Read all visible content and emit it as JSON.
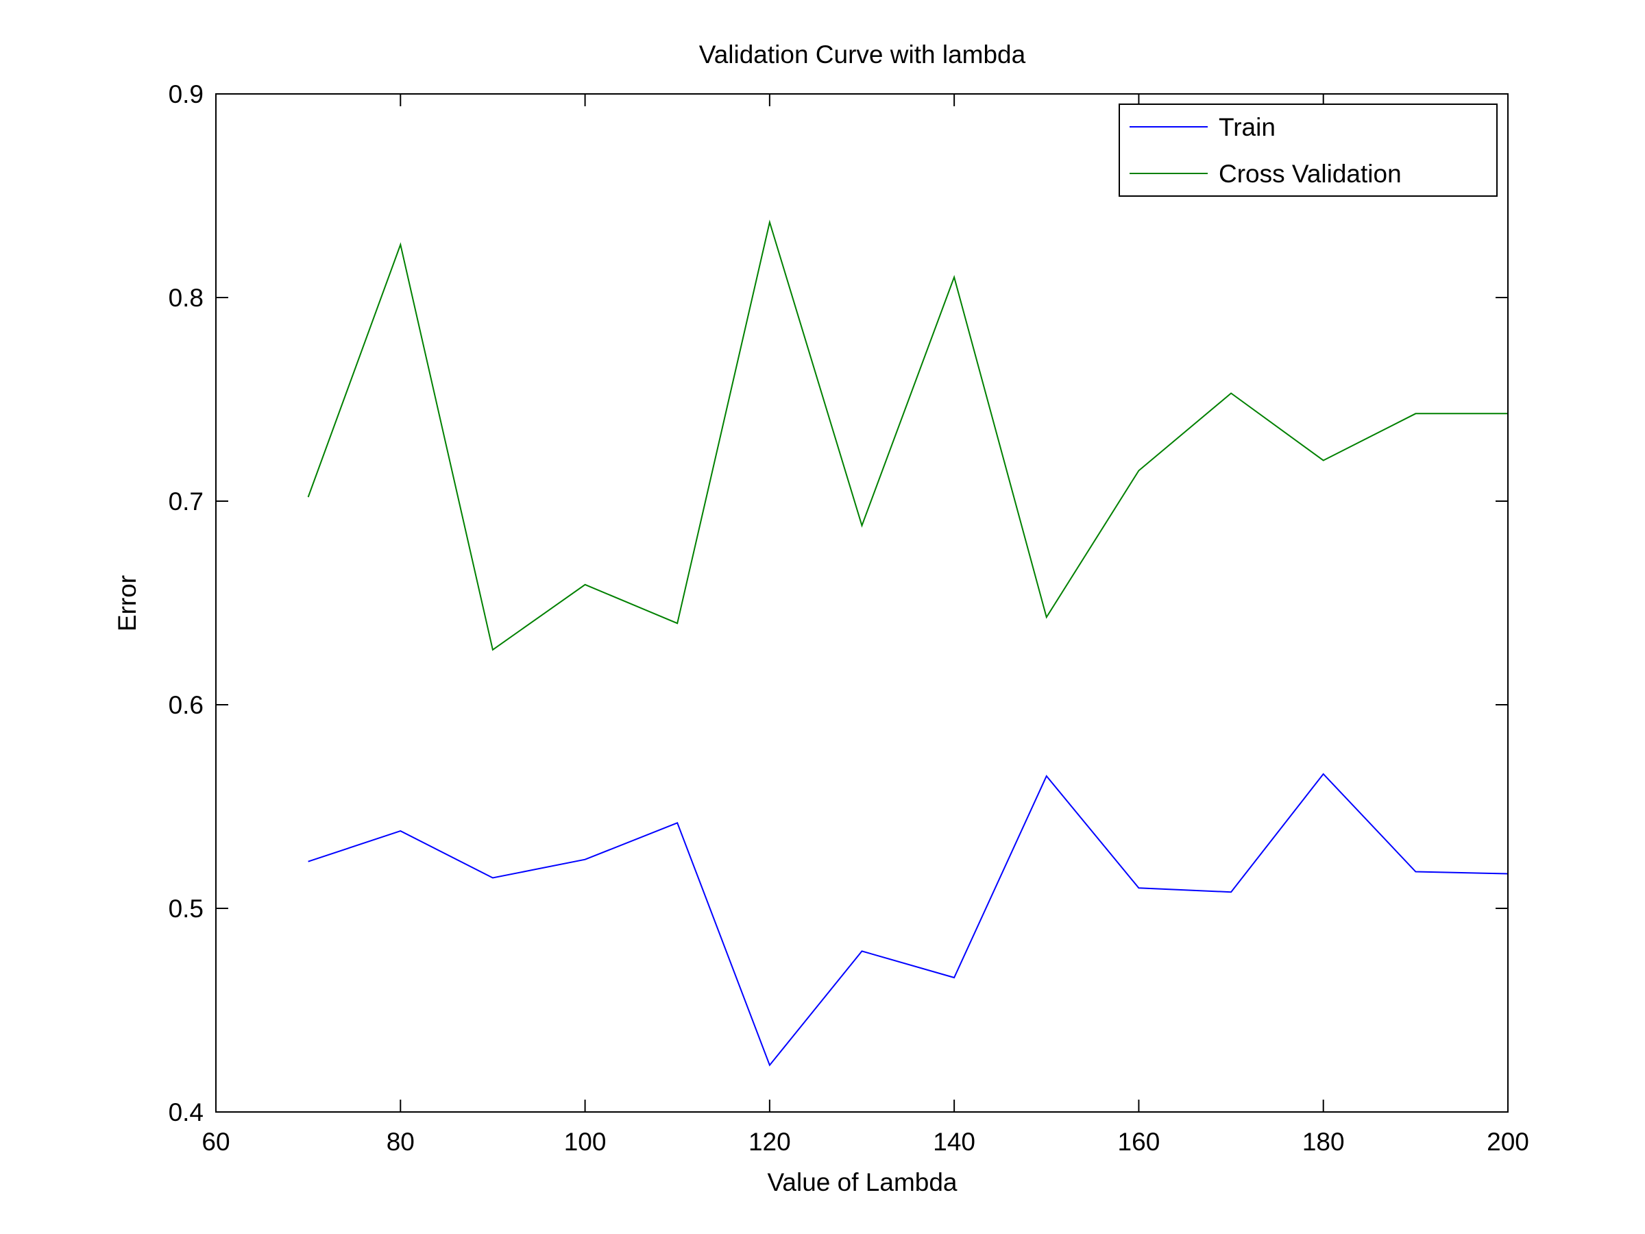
{
  "chart_data": {
    "type": "line",
    "title": "Validation Curve with lambda",
    "xlabel": "Value of Lambda",
    "ylabel": "Error",
    "xlim": [
      60,
      200
    ],
    "ylim": [
      0.4,
      0.9
    ],
    "xticks": [
      60,
      80,
      100,
      120,
      140,
      160,
      180,
      200
    ],
    "yticks": [
      0.4,
      0.5,
      0.6,
      0.7,
      0.8,
      0.9
    ],
    "xtick_labels": [
      "60",
      "80",
      "100",
      "120",
      "140",
      "160",
      "180",
      "200"
    ],
    "ytick_labels": [
      "0.4",
      "0.5",
      "0.6",
      "0.7",
      "0.8",
      "0.9"
    ],
    "grid": false,
    "legend_position": "top-right",
    "x": [
      70,
      80,
      90,
      100,
      110,
      120,
      130,
      140,
      150,
      160,
      170,
      180,
      190,
      200
    ],
    "series": [
      {
        "name": "Train",
        "color": "#0000ff",
        "values": [
          0.523,
          0.538,
          0.515,
          0.524,
          0.542,
          0.423,
          0.479,
          0.466,
          0.565,
          0.51,
          0.508,
          0.566,
          0.518,
          0.517
        ]
      },
      {
        "name": "Cross Validation",
        "color": "#008000",
        "values": [
          0.702,
          0.826,
          0.627,
          0.659,
          0.64,
          0.837,
          0.688,
          0.81,
          0.643,
          0.715,
          0.753,
          0.72,
          0.743,
          0.743
        ]
      }
    ]
  }
}
